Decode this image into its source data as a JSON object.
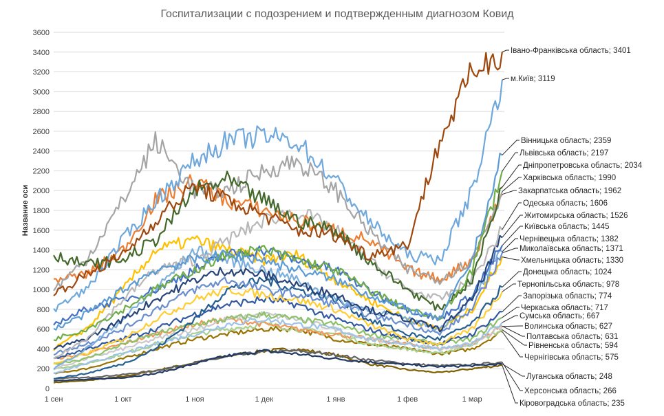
{
  "chart_data": {
    "type": "line",
    "title": "Госпитализации с подозрением и подтвержденным диагнозом Ковид",
    "xlabel": "",
    "ylabel": "Название оси",
    "ylim": [
      0,
      3600
    ],
    "ytick_step": 200,
    "grid": true,
    "legend": "data labels at right end of each line",
    "x_tick_labels": [
      "1 сен",
      "1 окт",
      "1 ноя",
      "1 дек",
      "1 янв",
      "1 фев",
      "1 мар"
    ],
    "x": [
      "1 сен",
      "15 сен",
      "1 окт",
      "15 окт",
      "1 ноя",
      "15 ноя",
      "1 дек",
      "15 дек",
      "1 янв",
      "15 янв",
      "1 фев",
      "15 фев",
      "1 мар",
      "14 мар"
    ],
    "series": [
      {
        "name": "Івано-Франківська область",
        "last": 3401,
        "color": "#9e480e",
        "values": [
          950,
          1150,
          1350,
          1700,
          2050,
          1900,
          1750,
          1600,
          1550,
          1350,
          1450,
          2500,
          3200,
          3401
        ]
      },
      {
        "name": "м.Київ",
        "last": 3119,
        "color": "#6fa8dc",
        "values": [
          800,
          1000,
          1500,
          1900,
          2300,
          2500,
          2550,
          2500,
          2100,
          1700,
          1350,
          1300,
          2000,
          3119
        ]
      },
      {
        "name": "Вінницька область",
        "last": 2359,
        "color": "#5b9bd5",
        "values": [
          600,
          750,
          1000,
          1200,
          1300,
          1350,
          1300,
          1200,
          1100,
          950,
          800,
          700,
          1300,
          2359
        ]
      },
      {
        "name": "Львівська область",
        "last": 2197,
        "color": "#70ad47",
        "values": [
          500,
          600,
          800,
          1000,
          1200,
          1350,
          1400,
          1300,
          1200,
          1000,
          800,
          700,
          1200,
          2197
        ]
      },
      {
        "name": "Дніпропетровська область",
        "last": 2034,
        "color": "#43682b",
        "values": [
          1350,
          1250,
          1300,
          1500,
          2000,
          2100,
          1900,
          1700,
          1600,
          1300,
          1000,
          800,
          1100,
          2034
        ]
      },
      {
        "name": "Харківська область",
        "last": 1990,
        "color": "#a5a5a5",
        "values": [
          1000,
          1300,
          1900,
          2500,
          2000,
          2000,
          2200,
          2300,
          2000,
          1600,
          1200,
          1100,
          1300,
          1990
        ]
      },
      {
        "name": "Закарпатська область",
        "last": 1962,
        "color": "#ed7d31",
        "values": [
          1100,
          1150,
          1400,
          1900,
          2100,
          1900,
          1800,
          1700,
          1600,
          1500,
          1200,
          1100,
          1300,
          1962
        ]
      },
      {
        "name": "Одеська область",
        "last": 1606,
        "color": "#b7b7b7",
        "values": [
          300,
          500,
          900,
          1200,
          1300,
          1500,
          1700,
          1800,
          1600,
          1300,
          1000,
          900,
          1100,
          1606
        ]
      },
      {
        "name": "Житомирська область",
        "last": 1526,
        "color": "#264478",
        "values": [
          400,
          500,
          700,
          900,
          1100,
          1200,
          1150,
          1050,
          950,
          800,
          700,
          600,
          900,
          1526
        ]
      },
      {
        "name": "Київська область",
        "last": 1445,
        "color": "#4472c4",
        "values": [
          650,
          800,
          900,
          1000,
          1200,
          1350,
          1400,
          1300,
          1200,
          1000,
          800,
          700,
          950,
          1445
        ]
      },
      {
        "name": "Чернівецька область",
        "last": 1382,
        "color": "#7cafdd",
        "values": [
          200,
          400,
          700,
          1000,
          1400,
          1300,
          1200,
          1100,
          900,
          800,
          700,
          600,
          900,
          1382
        ]
      },
      {
        "name": "Миколаївська область",
        "last": 1371,
        "color": "#698ed0",
        "values": [
          350,
          450,
          600,
          800,
          1000,
          1100,
          1000,
          950,
          850,
          750,
          650,
          550,
          800,
          1371
        ]
      },
      {
        "name": "Хмельницька область",
        "last": 1330,
        "color": "#ffc000",
        "values": [
          400,
          600,
          1000,
          1400,
          1500,
          1400,
          1300,
          1350,
          1100,
          900,
          700,
          600,
          800,
          1330
        ]
      },
      {
        "name": "Донецька область",
        "last": 1024,
        "color": "#255e91",
        "values": [
          100,
          150,
          250,
          400,
          700,
          1000,
          1100,
          1000,
          900,
          700,
          550,
          500,
          650,
          1024
        ]
      },
      {
        "name": "Тернопільська область",
        "last": 978,
        "color": "#ffcd33",
        "values": [
          250,
          350,
          500,
          700,
          900,
          1000,
          950,
          900,
          800,
          650,
          500,
          450,
          600,
          978
        ]
      },
      {
        "name": "Запорізька область",
        "last": 774,
        "color": "#335aa1",
        "values": [
          300,
          400,
          500,
          600,
          750,
          850,
          900,
          850,
          700,
          600,
          500,
          450,
          550,
          774
        ]
      },
      {
        "name": "Черкаська область",
        "last": 717,
        "color": "#8cc168",
        "values": [
          250,
          300,
          450,
          550,
          650,
          700,
          750,
          700,
          650,
          550,
          500,
          450,
          500,
          717
        ]
      },
      {
        "name": "Сумська область",
        "last": 667,
        "color": "#9dc3e6",
        "values": [
          150,
          250,
          350,
          450,
          550,
          650,
          700,
          650,
          600,
          500,
          450,
          400,
          450,
          667
        ]
      },
      {
        "name": "Волинська область",
        "last": 627,
        "color": "#c9c9c9",
        "values": [
          200,
          300,
          400,
          500,
          600,
          700,
          750,
          700,
          600,
          500,
          450,
          400,
          450,
          627
        ]
      },
      {
        "name": "Полтавська область",
        "last": 631,
        "color": "#f1975a",
        "values": [
          300,
          350,
          450,
          550,
          650,
          700,
          650,
          600,
          550,
          500,
          450,
          400,
          450,
          631
        ]
      },
      {
        "name": "Рівненська область",
        "last": 594,
        "color": "#a9d18e",
        "values": [
          200,
          250,
          350,
          450,
          550,
          600,
          650,
          600,
          550,
          450,
          400,
          350,
          450,
          594
        ]
      },
      {
        "name": "Чернігівська область",
        "last": 575,
        "color": "#997300",
        "values": [
          150,
          200,
          300,
          400,
          500,
          550,
          600,
          600,
          500,
          450,
          400,
          350,
          400,
          575
        ]
      },
      {
        "name": "Луганська область",
        "last": 248,
        "color": "#1f3864",
        "values": [
          80,
          90,
          110,
          150,
          250,
          330,
          380,
          350,
          300,
          270,
          240,
          220,
          230,
          248
        ]
      },
      {
        "name": "Херсонська область",
        "last": 266,
        "color": "#636363",
        "values": [
          100,
          110,
          140,
          180,
          260,
          320,
          370,
          380,
          340,
          290,
          250,
          230,
          240,
          266
        ]
      },
      {
        "name": "Кіровоградська область",
        "last": 235,
        "color": "#7f6000",
        "values": [
          60,
          80,
          120,
          180,
          260,
          330,
          380,
          400,
          340,
          250,
          190,
          160,
          200,
          235
        ]
      }
    ]
  }
}
